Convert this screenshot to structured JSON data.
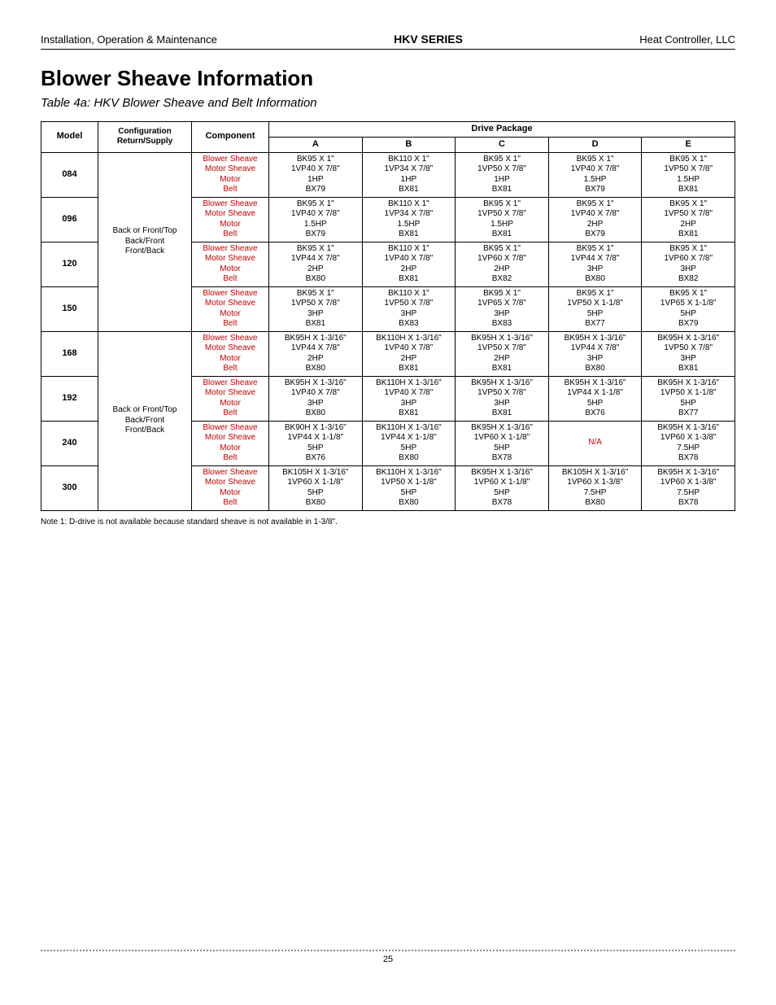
{
  "header": {
    "left": "Installation, Operation & Maintenance",
    "center": "HKV SERIES",
    "right": "Heat Controller, LLC"
  },
  "title": "Blower Sheave Information",
  "subtitle": "Table 4a: HKV Blower Sheave and Belt Information",
  "columns": {
    "model": "Model",
    "config": "Configuration Return/Supply",
    "component": "Component",
    "drive_package": "Drive Package",
    "packages": [
      "A",
      "B",
      "C",
      "D",
      "E"
    ]
  },
  "components": [
    "Blower Sheave",
    "Motor Sheave",
    "Motor",
    "Belt"
  ],
  "configs": {
    "group1": "Back or Front/Top\nBack/Front\nFront/Back",
    "group2": "Back or Front/Top\nBack/Front\nFront/Back"
  },
  "rows": [
    {
      "model": "084",
      "A": [
        "BK95 X 1\"",
        "1VP40 X 7/8\"",
        "1HP",
        "BX79"
      ],
      "B": [
        "BK110 X 1\"",
        "1VP34 X 7/8\"",
        "1HP",
        "BX81"
      ],
      "C": [
        "BK95 X 1\"",
        "1VP50 X 7/8\"",
        "1HP",
        "BX81"
      ],
      "D": [
        "BK95 X 1\"",
        "1VP40 X 7/8\"",
        "1.5HP",
        "BX79"
      ],
      "E": [
        "BK95 X 1\"",
        "1VP50 X 7/8\"",
        "1.5HP",
        "BX81"
      ]
    },
    {
      "model": "096",
      "A": [
        "BK95 X 1\"",
        "1VP40 X 7/8\"",
        "1.5HP",
        "BX79"
      ],
      "B": [
        "BK110 X 1\"",
        "1VP34 X 7/8\"",
        "1.5HP",
        "BX81"
      ],
      "C": [
        "BK95 X 1\"",
        "1VP50 X 7/8\"",
        "1.5HP",
        "BX81"
      ],
      "D": [
        "BK95 X 1\"",
        "1VP40 X 7/8\"",
        "2HP",
        "BX79"
      ],
      "E": [
        "BK95 X 1\"",
        "1VP50 X 7/8\"",
        "2HP",
        "BX81"
      ]
    },
    {
      "model": "120",
      "A": [
        "BK95 X 1\"",
        "1VP44 X 7/8\"",
        "2HP",
        "BX80"
      ],
      "B": [
        "BK110 X 1\"",
        "1VP40 X 7/8\"",
        "2HP",
        "BX81"
      ],
      "C": [
        "BK95 X 1\"",
        "1VP60 X 7/8\"",
        "2HP",
        "BX82"
      ],
      "D": [
        "BK95 X 1\"",
        "1VP44 X 7/8\"",
        "3HP",
        "BX80"
      ],
      "E": [
        "BK95 X 1\"",
        "1VP60 X 7/8\"",
        "3HP",
        "BX82"
      ]
    },
    {
      "model": "150",
      "A": [
        "BK95 X 1\"",
        "1VP50 X 7/8\"",
        "3HP",
        "BX81"
      ],
      "B": [
        "BK110 X 1\"",
        "1VP50 X 7/8\"",
        "3HP",
        "BX83"
      ],
      "C": [
        "BK95 X 1\"",
        "1VP65 X 7/8\"",
        "3HP",
        "BX83"
      ],
      "D": [
        "BK95 X 1\"",
        "1VP50 X 1-1/8\"",
        "5HP",
        "BX77"
      ],
      "E": [
        "BK95 X 1\"",
        "1VP65 X 1-1/8\"",
        "5HP",
        "BX79"
      ]
    },
    {
      "model": "168",
      "A": [
        "BK95H X 1-3/16\"",
        "1VP44 X 7/8\"",
        "2HP",
        "BX80"
      ],
      "B": [
        "BK110H X 1-3/16\"",
        "1VP40 X 7/8\"",
        "2HP",
        "BX81"
      ],
      "C": [
        "BK95H X 1-3/16\"",
        "1VP50 X 7/8\"",
        "2HP",
        "BX81"
      ],
      "D": [
        "BK95H X 1-3/16\"",
        "1VP44 X 7/8\"",
        "3HP",
        "BX80"
      ],
      "E": [
        "BK95H X 1-3/16\"",
        "1VP50 X 7/8\"",
        "3HP",
        "BX81"
      ]
    },
    {
      "model": "192",
      "A": [
        "BK95H X 1-3/16\"",
        "1VP40 X 7/8\"",
        "3HP",
        "BX80"
      ],
      "B": [
        "BK110H X 1-3/16\"",
        "1VP40 X 7/8\"",
        "3HP",
        "BX81"
      ],
      "C": [
        "BK95H X 1-3/16\"",
        "1VP50 X 7/8\"",
        "3HP",
        "BX81"
      ],
      "D": [
        "BK95H X 1-3/16\"",
        "1VP44 X 1-1/8\"",
        "5HP",
        "BX76"
      ],
      "E": [
        "BK95H X 1-3/16\"",
        "1VP50 X 1-1/8\"",
        "5HP",
        "BX77"
      ]
    },
    {
      "model": "240",
      "A": [
        "BK90H X 1-3/16\"",
        "1VP44 X 1-1/8\"",
        "5HP",
        "BX76"
      ],
      "B": [
        "BK110H X 1-3/16\"",
        "1VP44 X 1-1/8\"",
        "5HP",
        "BX80"
      ],
      "C": [
        "BK95H X 1-3/16\"",
        "1VP60 X 1-1/8\"",
        "5HP",
        "BX78"
      ],
      "D": "N/A",
      "E": [
        "BK95H X 1-3/16\"",
        "1VP60 X 1-3/8\"",
        "7.5HP",
        "BX78"
      ]
    },
    {
      "model": "300",
      "A": [
        "BK105H X 1-3/16\"",
        "1VP60 X 1-1/8\"",
        "5HP",
        "BX80"
      ],
      "B": [
        "BK110H X 1-3/16\"",
        "1VP50 X 1-1/8\"",
        "5HP",
        "BX80"
      ],
      "C": [
        "BK95H X 1-3/16\"",
        "1VP60 X 1-1/8\"",
        "5HP",
        "BX78"
      ],
      "D": [
        "BK105H X 1-3/16\"",
        "1VP60 X 1-3/8\"",
        "7.5HP",
        "BX80"
      ],
      "E": [
        "BK95H X 1-3/16\"",
        "1VP60 X 1-3/8\"",
        "7.5HP",
        "BX78"
      ]
    }
  ],
  "note": "Note 1: D-drive is not available because standard sheave is not available in 1-3/8\".",
  "page_number": "25"
}
